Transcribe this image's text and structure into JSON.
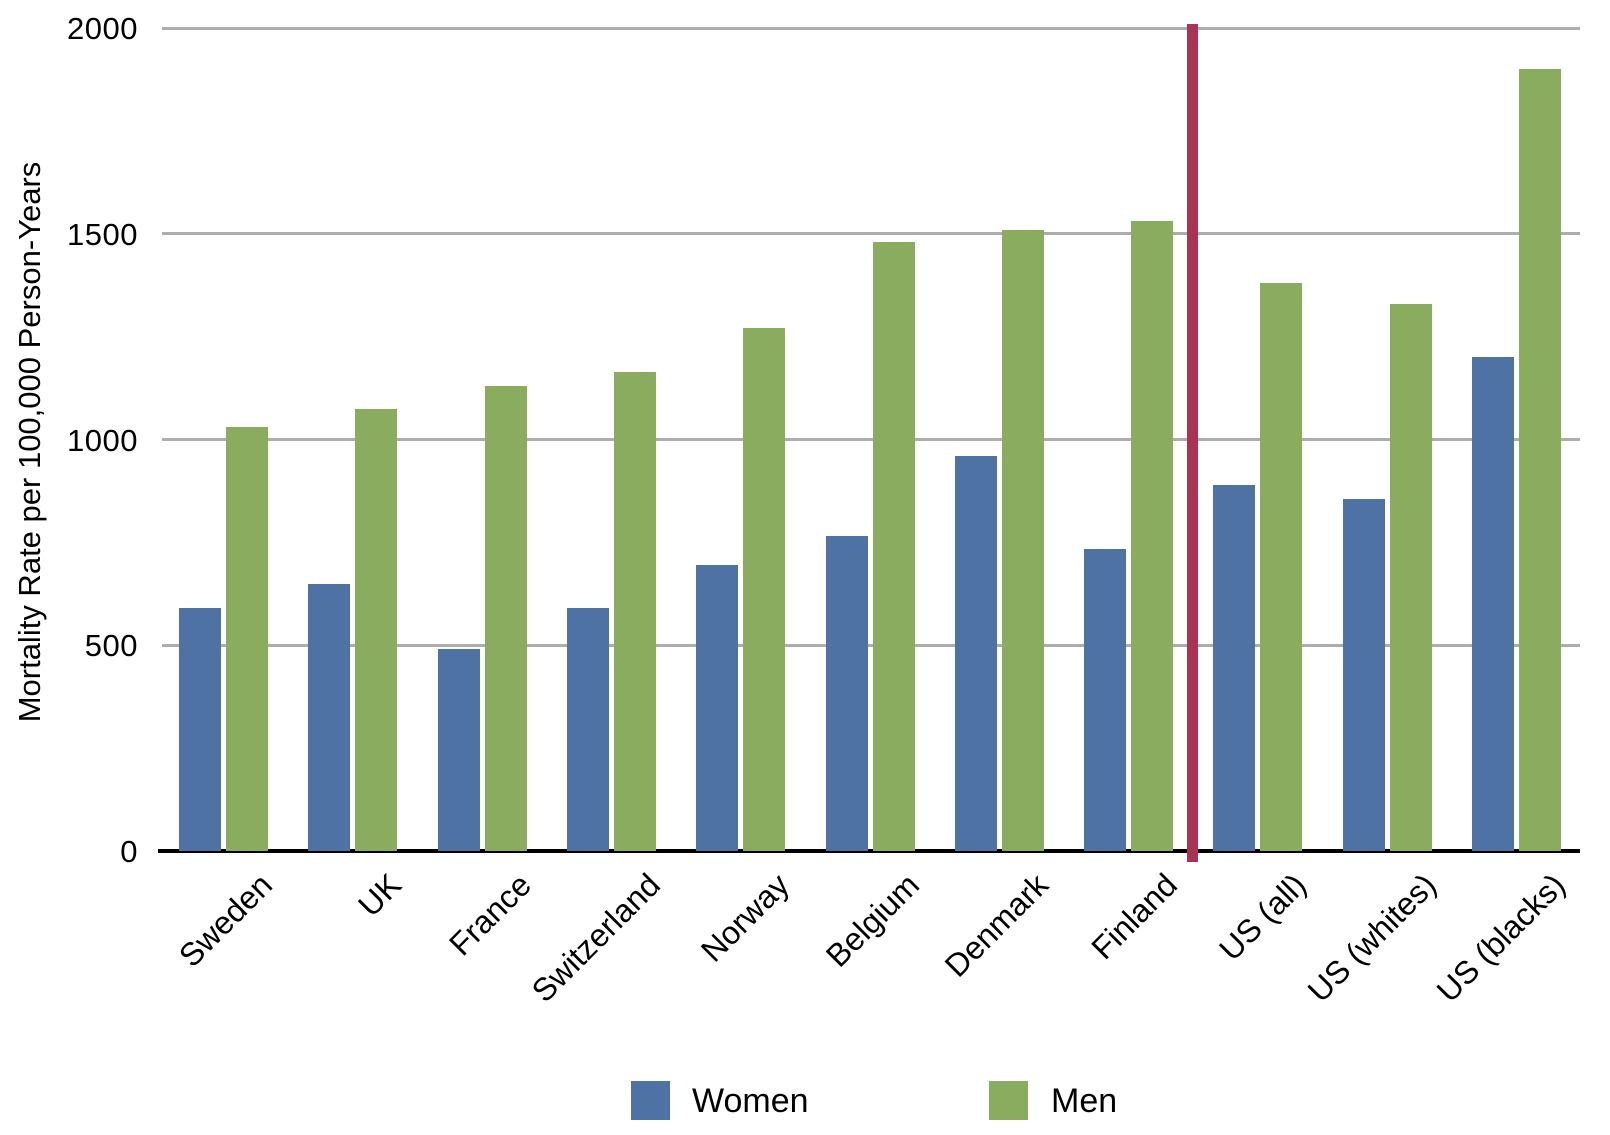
{
  "chart_data": {
    "type": "bar",
    "title": "",
    "xlabel": "",
    "ylabel": "Mortality Rate per 100,000 Person-Years",
    "ylim": [
      0,
      2000
    ],
    "yticks": [
      "0",
      "500",
      "1000",
      "1500",
      "2000"
    ],
    "grid": true,
    "legend_position": "bottom",
    "categories": [
      "Sweden",
      "UK",
      "France",
      "Switzerland",
      "Norway",
      "Belgium",
      "Denmark",
      "Finland",
      "US (all)",
      "US (whites)",
      "US (blacks)"
    ],
    "series": [
      {
        "name": "Women",
        "color": "#4e72a4",
        "values": [
          590,
          650,
          490,
          590,
          695,
          765,
          960,
          735,
          890,
          855,
          1200
        ]
      },
      {
        "name": "Men",
        "color": "#8aac5e",
        "values": [
          1030,
          1075,
          1130,
          1165,
          1270,
          1480,
          1510,
          1530,
          1380,
          1330,
          1900
        ]
      }
    ],
    "separator": {
      "between": [
        "Finland",
        "US (all)"
      ],
      "color": "#a93355",
      "meaning": "divides European countries from US groups"
    },
    "colors": {
      "gridline": "#adadad",
      "axis": "#000000",
      "text": "#000000",
      "background": "#ffffff"
    }
  }
}
